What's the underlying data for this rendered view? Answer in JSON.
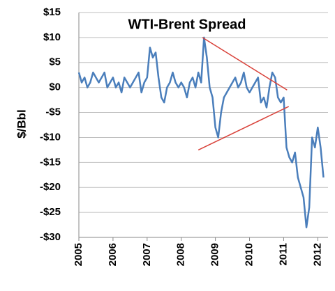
{
  "chart_data": {
    "type": "line",
    "title": "WTI-Brent Spread",
    "y_label": "$/Bbl",
    "x": [
      2005.0,
      2005.083,
      2005.167,
      2005.25,
      2005.333,
      2005.417,
      2005.5,
      2005.583,
      2005.667,
      2005.75,
      2005.833,
      2005.917,
      2006.0,
      2006.083,
      2006.167,
      2006.25,
      2006.333,
      2006.417,
      2006.5,
      2006.583,
      2006.667,
      2006.75,
      2006.833,
      2006.917,
      2007.0,
      2007.083,
      2007.167,
      2007.25,
      2007.333,
      2007.417,
      2007.5,
      2007.583,
      2007.667,
      2007.75,
      2007.833,
      2007.917,
      2008.0,
      2008.083,
      2008.167,
      2008.25,
      2008.333,
      2008.417,
      2008.5,
      2008.583,
      2008.667,
      2008.75,
      2008.833,
      2008.917,
      2009.0,
      2009.083,
      2009.167,
      2009.25,
      2009.333,
      2009.417,
      2009.5,
      2009.583,
      2009.667,
      2009.75,
      2009.833,
      2009.917,
      2010.0,
      2010.083,
      2010.167,
      2010.25,
      2010.333,
      2010.417,
      2010.5,
      2010.583,
      2010.667,
      2010.75,
      2010.833,
      2010.917,
      2011.0,
      2011.083,
      2011.167,
      2011.25,
      2011.333,
      2011.417,
      2011.5,
      2011.583,
      2011.667,
      2011.75,
      2011.833,
      2011.917,
      2012.0,
      2012.083,
      2012.167
    ],
    "series": [
      {
        "name": "WTI-Brent Spread",
        "color": "#4a7ebb",
        "values": [
          3,
          1,
          2,
          0,
          1,
          3,
          2,
          1,
          2,
          3,
          0,
          1,
          2,
          0,
          1,
          -1,
          2,
          1,
          0,
          1,
          2,
          3,
          -1,
          1,
          2,
          8,
          6,
          7,
          2,
          -2,
          -3,
          0,
          1,
          3,
          1,
          0,
          1,
          0,
          -2,
          1,
          2,
          0,
          3,
          1,
          10,
          6,
          0,
          -2,
          -8,
          -10,
          -5,
          -2,
          -1,
          0,
          1,
          2,
          0,
          1,
          3,
          0,
          -1,
          0,
          1,
          2,
          -3,
          -2,
          -4,
          0,
          3,
          2,
          -2,
          -3,
          -2,
          -12,
          -14,
          -15,
          -13,
          -18,
          -20,
          -22,
          -28,
          -24,
          -10,
          -12,
          -8,
          -12,
          -18
        ]
      }
    ],
    "annotations": [
      {
        "color": "#d9423a",
        "x": [
          2008.62,
          2011.1
        ],
        "y": [
          10,
          -0.5
        ]
      },
      {
        "color": "#d9423a",
        "x": [
          2008.5,
          2011.15
        ],
        "y": [
          -12.5,
          -3.8
        ]
      }
    ],
    "xlim": [
      2005,
      2012.3
    ],
    "xticks": [
      2005,
      2006,
      2007,
      2008,
      2009,
      2010,
      2011,
      2012
    ],
    "ylim": [
      -30,
      15
    ],
    "yticks": [
      {
        "value": -30,
        "label": "-$30"
      },
      {
        "value": -25,
        "label": "-$25"
      },
      {
        "value": -20,
        "label": "-$20"
      },
      {
        "value": -15,
        "label": "-$15"
      },
      {
        "value": -10,
        "label": "-$10"
      },
      {
        "value": -5,
        "label": "-$5"
      },
      {
        "value": 0,
        "label": "$0"
      },
      {
        "value": 5,
        "label": "$5"
      },
      {
        "value": 10,
        "label": "$10"
      },
      {
        "value": 15,
        "label": "$15"
      }
    ],
    "grid": true
  }
}
